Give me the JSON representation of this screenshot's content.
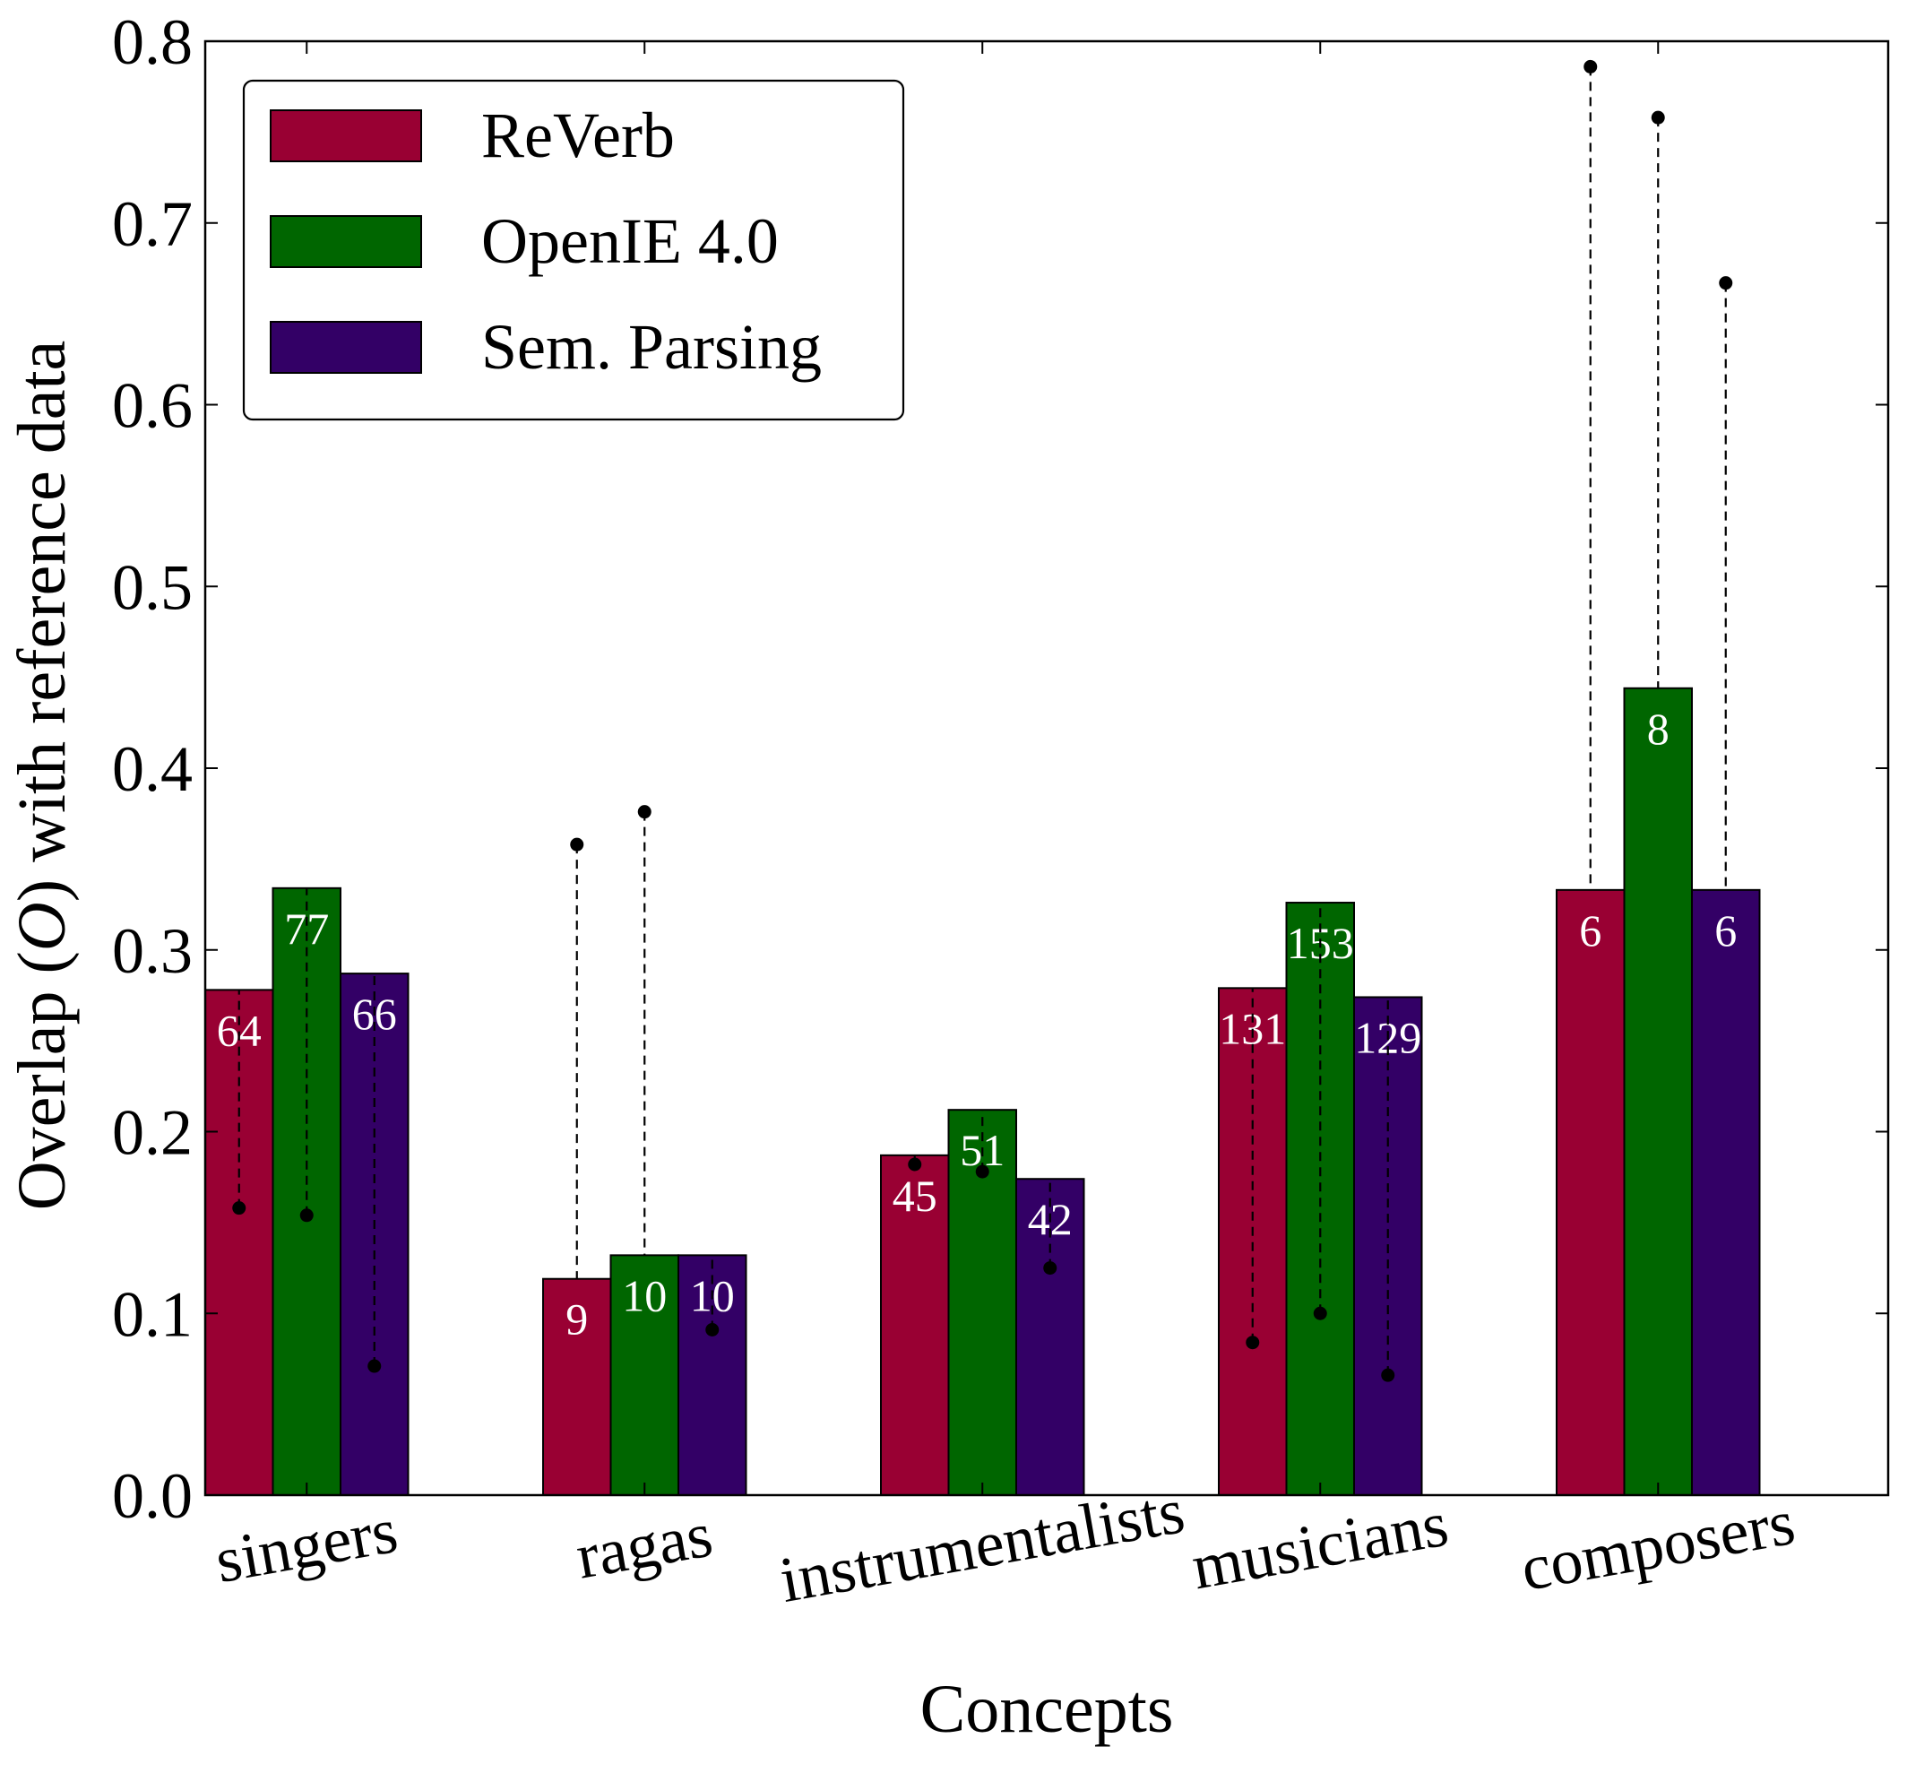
{
  "chart_data": {
    "type": "bar",
    "xlabel": "Concepts",
    "ylabel_parts": [
      "Overlap (",
      "O",
      ") with reference data"
    ],
    "ylim": [
      0.0,
      0.8
    ],
    "yticks": [
      "0.0",
      "0.1",
      "0.2",
      "0.3",
      "0.4",
      "0.5",
      "0.6",
      "0.7",
      "0.8"
    ],
    "categories": [
      "singers",
      "ragas",
      "instrumentalists",
      "musicians",
      "composers"
    ],
    "grid": false,
    "legend_position": "top-left",
    "series": [
      {
        "name": "ReVerb",
        "color": "#990033",
        "values": [
          0.278,
          0.119,
          0.187,
          0.279,
          0.333
        ],
        "labels": [
          "64",
          "9",
          "45",
          "131",
          "6"
        ],
        "markers": [
          0.158,
          0.358,
          0.182,
          0.084,
          0.786
        ]
      },
      {
        "name": "OpenIE 4.0",
        "color": "#006600",
        "values": [
          0.334,
          0.132,
          0.212,
          0.326,
          0.444
        ],
        "labels": [
          "77",
          "10",
          "51",
          "153",
          "8"
        ],
        "markers": [
          0.154,
          0.376,
          0.178,
          0.1,
          0.758
        ]
      },
      {
        "name": "Sem. Parsing",
        "color": "#330066",
        "values": [
          0.287,
          0.132,
          0.174,
          0.274,
          0.333
        ],
        "labels": [
          "66",
          "10",
          "42",
          "129",
          "6"
        ],
        "markers": [
          0.071,
          0.091,
          0.125,
          0.066,
          0.667
        ]
      }
    ]
  }
}
